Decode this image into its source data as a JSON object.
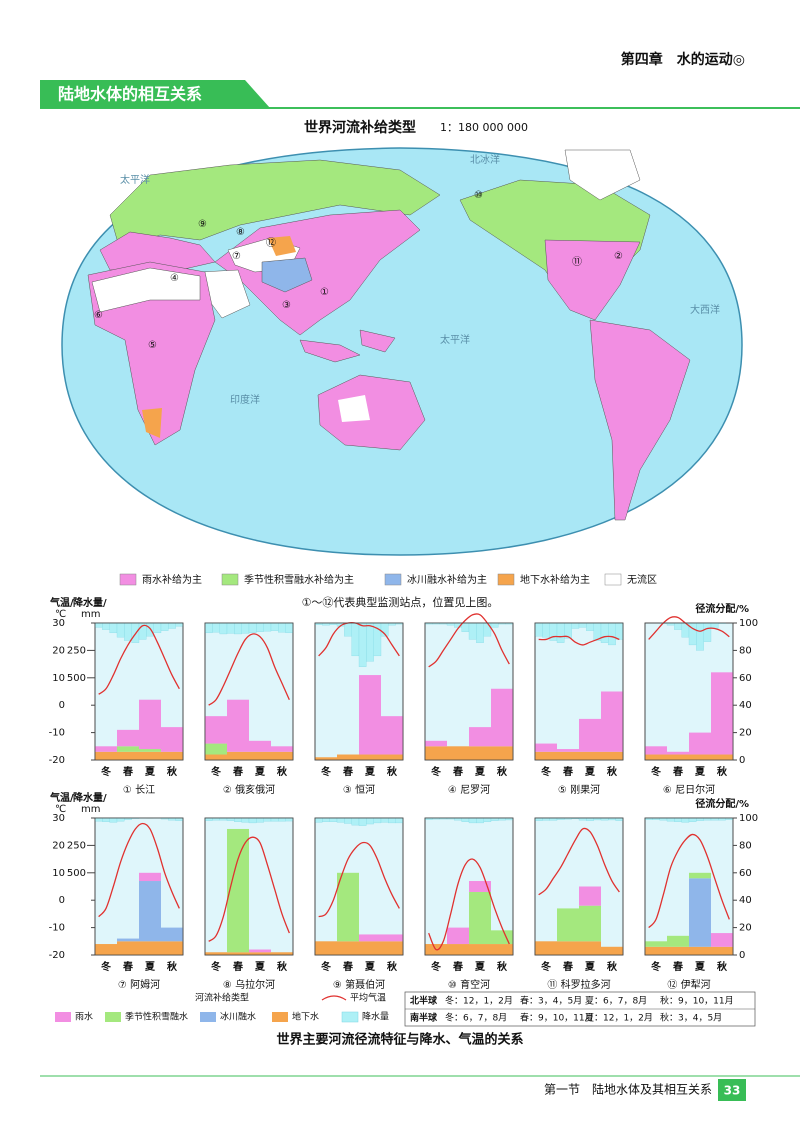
{
  "header": {
    "chapter": "第四章　水的运动◎"
  },
  "section_banner": "陆地水体的相互关系",
  "map": {
    "title": "世界河流补给类型",
    "scale": "1：180 000 000",
    "ocean_labels": [
      "太平洋",
      "北冰洋",
      "太平洋",
      "大西洋",
      "印度洋"
    ],
    "stations": [
      "①",
      "②",
      "③",
      "④",
      "⑤",
      "⑥",
      "⑦",
      "⑧",
      "⑨",
      "⑩",
      "⑪",
      "⑫"
    ],
    "legend": [
      {
        "label": "雨水补给为主",
        "color": "#f28ee2"
      },
      {
        "label": "季节性积雪融水补给为主",
        "color": "#a4e87e"
      },
      {
        "label": "冰川融水补给为主",
        "color": "#8fb6ea"
      },
      {
        "label": "地下水补给为主",
        "color": "#f5a44c"
      },
      {
        "label": "无流区",
        "color": "#ffffff"
      }
    ]
  },
  "note": "①～⑫代表典型监测站点，位置见上图。",
  "charts": {
    "temp_axis_label": [
      "气温/",
      "℃"
    ],
    "precip_axis_label": [
      "降水量/",
      "mm"
    ],
    "runoff_axis_label": "径流分配/%",
    "temp_lim": [
      -20,
      30
    ],
    "temp_ticks": [
      -20,
      -10,
      0,
      10,
      20,
      30
    ],
    "precip_lim": [
      0,
      1250
    ],
    "precip_ticks": [
      250,
      500
    ],
    "runoff_lim": [
      0,
      100
    ],
    "runoff_ticks": [
      0,
      20,
      40,
      60,
      80,
      100
    ],
    "seasons": [
      "冬",
      "春",
      "夏",
      "秋"
    ],
    "temp_color": "#e0312f",
    "precip_color": "#aef0f6",
    "components": [
      {
        "name": "雨水",
        "color": "#f28ee2"
      },
      {
        "name": "季节性积雪融水",
        "color": "#a4e87e"
      },
      {
        "name": "冰川融水",
        "color": "#8fb6ea"
      },
      {
        "name": "地下水",
        "color": "#f5a44c"
      }
    ],
    "rivers": [
      {
        "name": "① 长江",
        "temperature": [
          4,
          6,
          11,
          17,
          22,
          26,
          29,
          28,
          23,
          17,
          11,
          6
        ],
        "precipitation": [
          40,
          60,
          90,
          130,
          160,
          180,
          150,
          120,
          90,
          70,
          50,
          30
        ],
        "runoff": [
          [
            4,
            12,
            36,
            18
          ],
          [
            0,
            4,
            2,
            0
          ],
          [
            0,
            0,
            0,
            0
          ],
          [
            6,
            6,
            6,
            6
          ]
        ]
      },
      {
        "name": "② 俄亥俄河",
        "temperature": [
          0,
          2,
          7,
          13,
          19,
          24,
          26,
          25,
          21,
          14,
          8,
          2
        ],
        "precipitation": [
          90,
          85,
          100,
          95,
          100,
          95,
          90,
          80,
          75,
          70,
          85,
          90
        ],
        "runoff": [
          [
            20,
            38,
            8,
            4
          ],
          [
            8,
            0,
            0,
            0
          ],
          [
            0,
            0,
            0,
            0
          ],
          [
            4,
            6,
            6,
            6
          ]
        ]
      },
      {
        "name": "③ 恒河",
        "temperature": [
          18,
          21,
          26,
          29,
          30,
          30,
          29,
          29,
          28,
          26,
          22,
          18
        ],
        "precipitation": [
          15,
          20,
          15,
          30,
          120,
          300,
          400,
          350,
          300,
          120,
          20,
          10
        ],
        "runoff": [
          [
            0,
            0,
            58,
            28
          ],
          [
            0,
            0,
            0,
            0
          ],
          [
            0,
            0,
            0,
            0
          ],
          [
            2,
            4,
            4,
            4
          ]
        ]
      },
      {
        "name": "④ 尼罗河",
        "temperature": [
          14,
          16,
          20,
          24,
          28,
          31,
          33,
          33,
          30,
          26,
          20,
          15
        ],
        "precipitation": [
          10,
          10,
          10,
          20,
          40,
          80,
          150,
          180,
          120,
          40,
          10,
          10
        ],
        "runoff": [
          [
            4,
            0,
            14,
            42
          ],
          [
            0,
            0,
            0,
            0
          ],
          [
            0,
            0,
            0,
            0
          ],
          [
            10,
            10,
            10,
            10
          ]
        ]
      },
      {
        "name": "⑤ 刚果河",
        "temperature": [
          24,
          24,
          25,
          25,
          25,
          23,
          22,
          23,
          24,
          25,
          25,
          24
        ],
        "precipitation": [
          120,
          130,
          160,
          180,
          140,
          50,
          40,
          70,
          160,
          180,
          200,
          150
        ],
        "runoff": [
          [
            6,
            2,
            24,
            44
          ],
          [
            0,
            0,
            0,
            0
          ],
          [
            0,
            0,
            0,
            0
          ],
          [
            6,
            6,
            6,
            6
          ]
        ]
      },
      {
        "name": "⑥ 尼日尔河",
        "temperature": [
          24,
          27,
          30,
          32,
          32,
          30,
          28,
          27,
          28,
          28,
          27,
          25
        ],
        "precipitation": [
          0,
          0,
          5,
          20,
          60,
          130,
          200,
          250,
          170,
          50,
          5,
          0
        ],
        "runoff": [
          [
            6,
            2,
            16,
            60
          ],
          [
            0,
            0,
            0,
            0
          ],
          [
            0,
            0,
            0,
            0
          ],
          [
            4,
            4,
            4,
            4
          ]
        ]
      },
      {
        "name": "⑦ 阿姆河",
        "temperature": [
          -6,
          -3,
          5,
          14,
          21,
          26,
          28,
          26,
          19,
          10,
          3,
          -3
        ],
        "precipitation": [
          30,
          35,
          40,
          30,
          15,
          5,
          2,
          1,
          2,
          10,
          20,
          25
        ],
        "runoff": [
          [
            0,
            0,
            6,
            0
          ],
          [
            0,
            0,
            0,
            0
          ],
          [
            0,
            2,
            44,
            10
          ],
          [
            8,
            10,
            10,
            10
          ]
        ]
      },
      {
        "name": "⑧ 乌拉尔河",
        "temperature": [
          -15,
          -13,
          -6,
          5,
          15,
          21,
          23,
          21,
          13,
          4,
          -5,
          -12
        ],
        "precipitation": [
          25,
          20,
          20,
          25,
          35,
          40,
          45,
          40,
          30,
          30,
          30,
          28
        ],
        "runoff": [
          [
            0,
            0,
            2,
            0
          ],
          [
            0,
            90,
            0,
            0
          ],
          [
            0,
            0,
            0,
            0
          ],
          [
            2,
            2,
            2,
            2
          ]
        ]
      },
      {
        "name": "⑨ 第聂伯河",
        "temperature": [
          -6,
          -5,
          0,
          8,
          15,
          19,
          21,
          20,
          15,
          8,
          2,
          -3
        ],
        "precipitation": [
          40,
          35,
          35,
          40,
          50,
          65,
          70,
          55,
          45,
          40,
          45,
          45
        ],
        "runoff": [
          [
            0,
            0,
            5,
            5
          ],
          [
            0,
            50,
            0,
            0
          ],
          [
            0,
            0,
            0,
            0
          ],
          [
            10,
            10,
            10,
            10
          ]
        ]
      },
      {
        "name": "⑩ 育空河",
        "temperature": [
          -12,
          -18,
          -15,
          -5,
          6,
          13,
          15,
          12,
          5,
          -3,
          -10,
          -16
        ],
        "precipitation": [
          15,
          12,
          10,
          10,
          20,
          35,
          45,
          45,
          35,
          25,
          20,
          18
        ],
        "runoff": [
          [
            0,
            12,
            8,
            0
          ],
          [
            0,
            0,
            38,
            10
          ],
          [
            0,
            0,
            0,
            0
          ],
          [
            8,
            8,
            8,
            8
          ]
        ]
      },
      {
        "name": "⑪ 科罗拉多河",
        "temperature": [
          2,
          4,
          8,
          12,
          17,
          22,
          26,
          25,
          20,
          13,
          7,
          3
        ],
        "precipitation": [
          25,
          22,
          22,
          15,
          12,
          8,
          20,
          25,
          18,
          20,
          18,
          25
        ],
        "runoff": [
          [
            0,
            0,
            14,
            0
          ],
          [
            0,
            24,
            26,
            0
          ],
          [
            0,
            0,
            0,
            0
          ],
          [
            10,
            10,
            10,
            6
          ]
        ]
      },
      {
        "name": "⑫ 伊犁河",
        "temperature": [
          -10,
          -7,
          2,
          12,
          18,
          22,
          24,
          22,
          16,
          8,
          0,
          -7
        ],
        "precipitation": [
          15,
          15,
          20,
          30,
          35,
          40,
          35,
          25,
          20,
          20,
          20,
          15
        ],
        "runoff": [
          [
            0,
            0,
            0,
            10
          ],
          [
            4,
            8,
            4,
            0
          ],
          [
            0,
            0,
            50,
            0
          ],
          [
            6,
            6,
            6,
            6
          ]
        ]
      }
    ]
  },
  "chart_legend": {
    "title": "河流补给类型",
    "temp_label": "平均气温",
    "precip_label": "降水量"
  },
  "season_table": [
    {
      "hemisphere": "北半球",
      "seasons": [
        "冬：12，1，2月",
        "春：3，4，5月",
        "夏：6，7，8月",
        "秋：9，10，11月"
      ]
    },
    {
      "hemisphere": "南半球",
      "seasons": [
        "冬：6，7，8月",
        "春：9，10，11月",
        "夏：12，1，2月",
        "秋：3，4，5月"
      ]
    }
  ],
  "caption": "世界主要河流径流特征与降水、气温的关系",
  "footer": {
    "section": "第一节　陆地水体及其相互关系",
    "page": 33
  }
}
